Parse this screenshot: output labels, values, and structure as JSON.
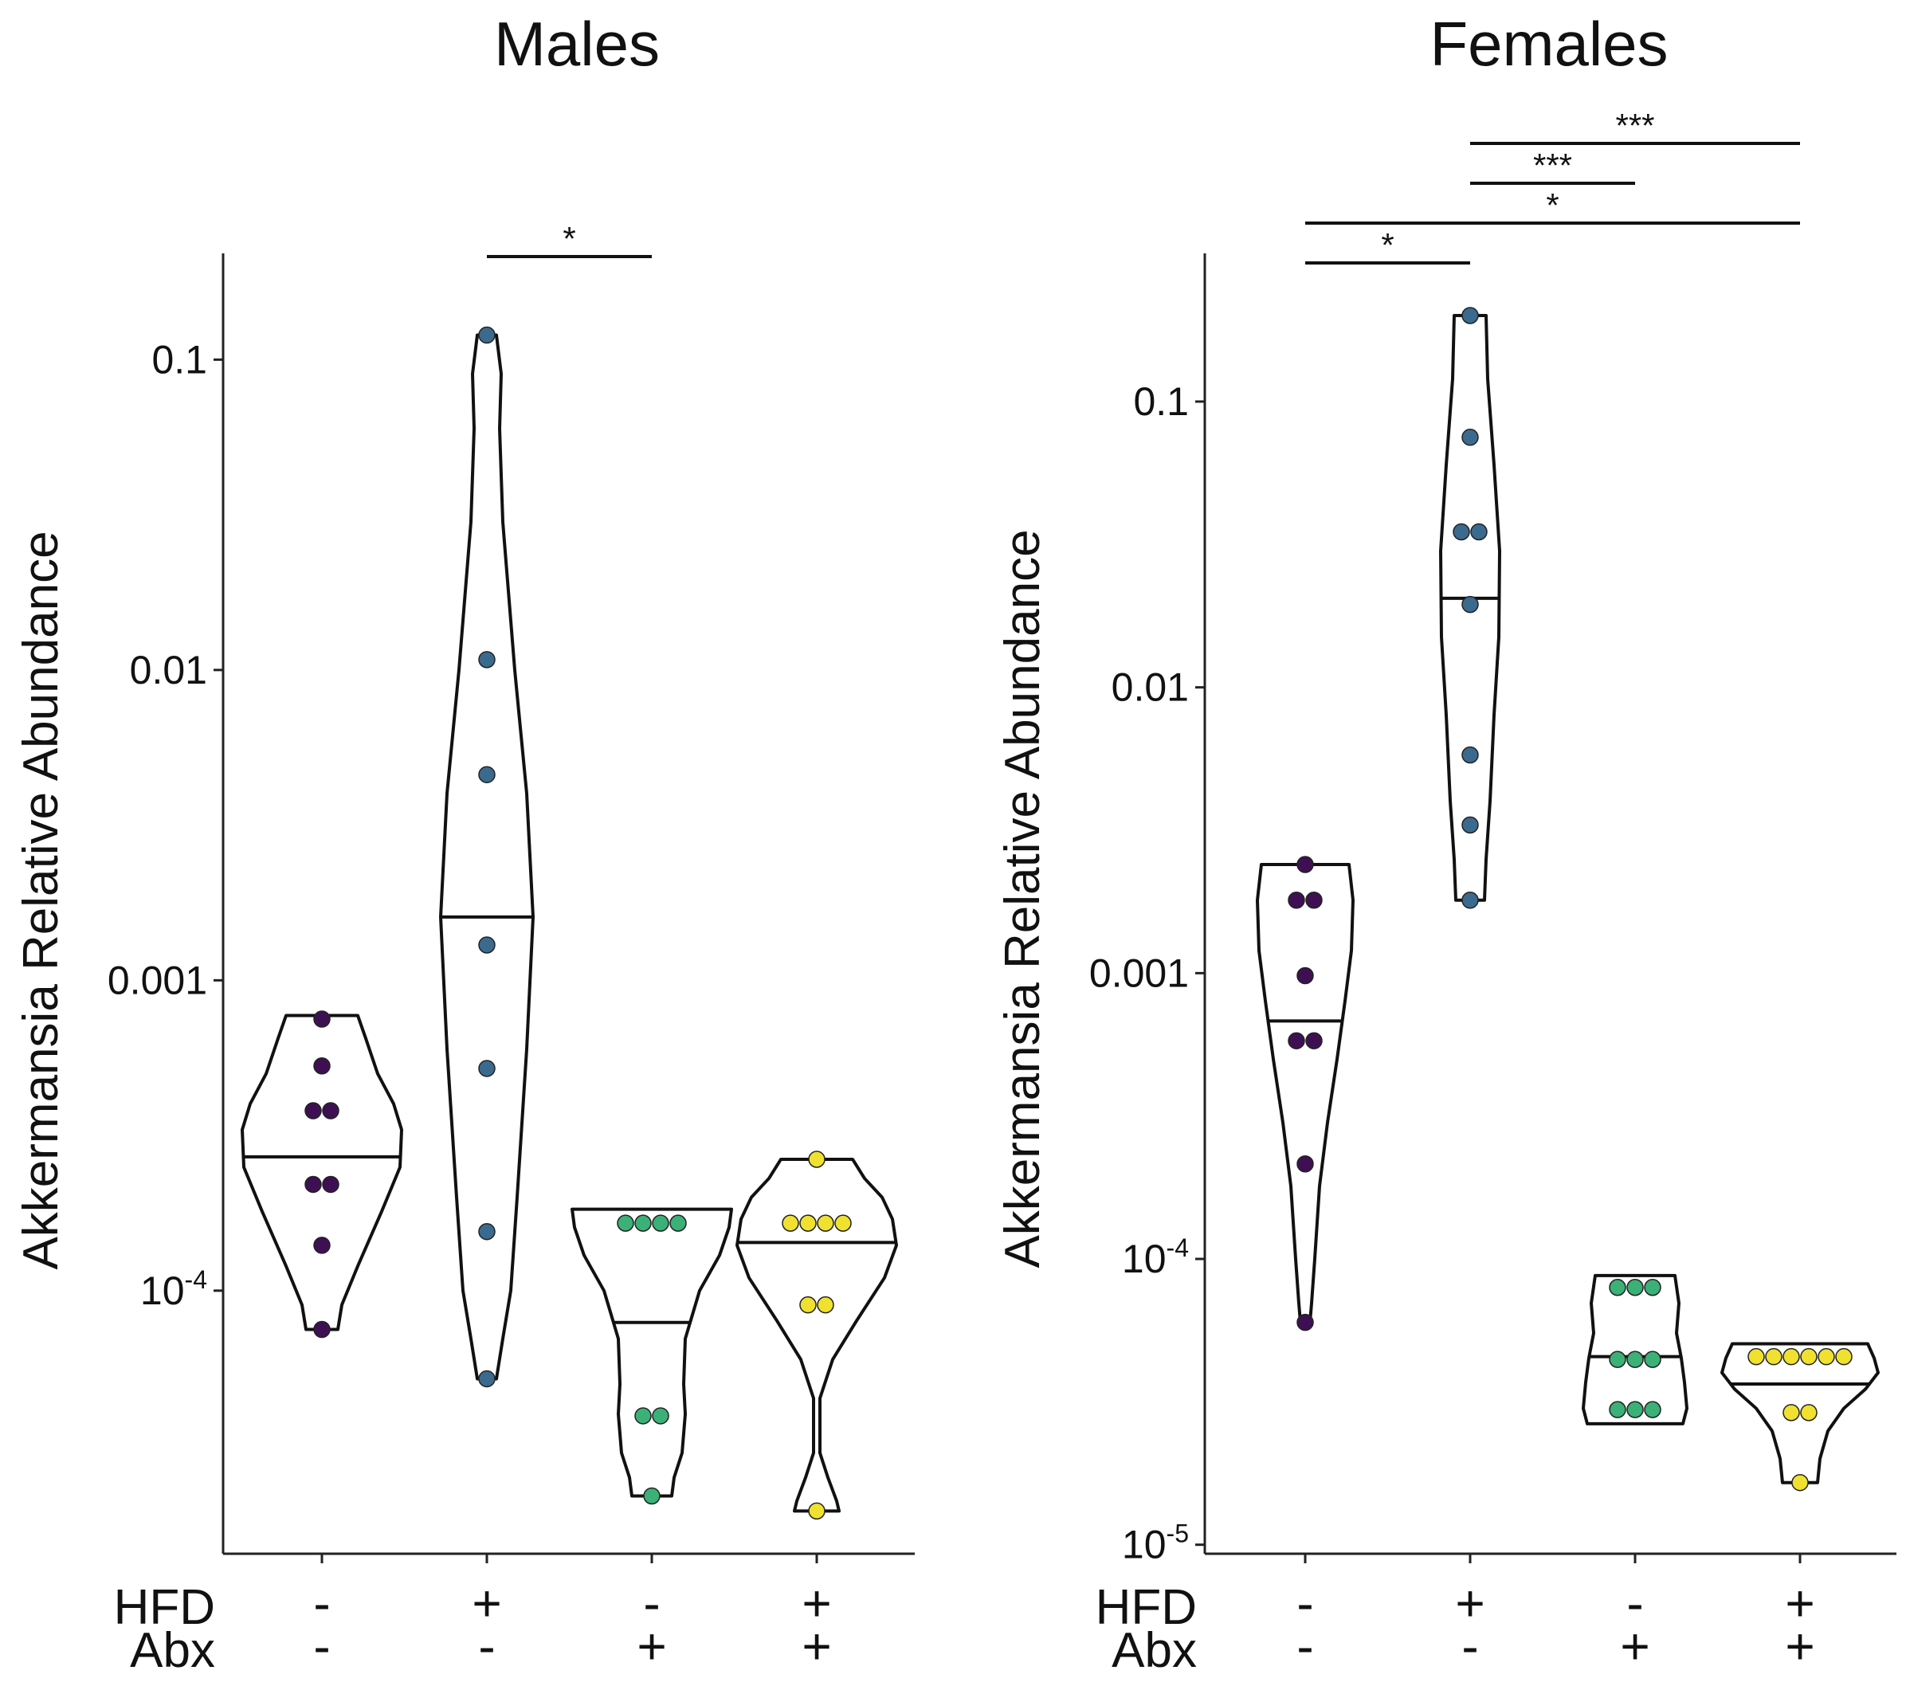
{
  "chart_data": [
    {
      "type": "violin",
      "panel": "left",
      "title": "Males",
      "ylabel": "Akkermansia Relative Abundance",
      "yscale": "log10",
      "ylim": [
        1.42e-05,
        0.22
      ],
      "yticks": [
        {
          "value": 0.1,
          "label": "0.1"
        },
        {
          "value": 0.01,
          "label": "0.01"
        },
        {
          "value": 0.001,
          "label": "0.001"
        },
        {
          "value": 0.0001,
          "base": "10",
          "exp": "-4"
        }
      ],
      "row_labels": [
        "HFD",
        "Abx"
      ],
      "categories": [
        {
          "hfd": "-",
          "abx": "-",
          "color": "#3e1053",
          "median": 0.00027,
          "violin_top": 0.00077,
          "violin_bottom": 7.5e-05,
          "points": [
            0.00075,
            0.00053,
            0.00038,
            0.00038,
            0.00022,
            0.00022,
            0.00014,
            7.5e-05
          ],
          "shape": [
            [
              0.00077,
              0.45
            ],
            [
              0.00065,
              0.55
            ],
            [
              0.0005,
              0.7
            ],
            [
              0.0004,
              0.9
            ],
            [
              0.00033,
              1.0
            ],
            [
              0.00025,
              0.98
            ],
            [
              0.00018,
              0.75
            ],
            [
              0.00012,
              0.45
            ],
            [
              9e-05,
              0.25
            ],
            [
              7.5e-05,
              0.2
            ]
          ]
        },
        {
          "hfd": "+",
          "abx": "-",
          "color": "#3b6a8f",
          "median": 0.0016,
          "violin_top": 0.12,
          "violin_bottom": 5.2e-05,
          "points": [
            0.12,
            0.0108,
            0.0046,
            0.0013,
            0.00052,
            0.000155,
            5.2e-05
          ],
          "shape": [
            [
              0.12,
              0.12
            ],
            [
              0.09,
              0.18
            ],
            [
              0.06,
              0.16
            ],
            [
              0.03,
              0.2
            ],
            [
              0.01,
              0.35
            ],
            [
              0.004,
              0.5
            ],
            [
              0.0016,
              0.58
            ],
            [
              0.0006,
              0.5
            ],
            [
              0.0002,
              0.38
            ],
            [
              0.0001,
              0.3
            ],
            [
              7e-05,
              0.2
            ],
            [
              5.2e-05,
              0.12
            ]
          ]
        },
        {
          "hfd": "-",
          "abx": "+",
          "color": "#3bb077",
          "median": 7.9e-05,
          "violin_top": 0.000183,
          "violin_bottom": 2.18e-05,
          "points": [
            0.000165,
            0.000165,
            0.000165,
            0.000165,
            3.95e-05,
            3.95e-05,
            2.18e-05
          ],
          "shape": [
            [
              0.000183,
              1.0
            ],
            [
              0.00016,
              0.97
            ],
            [
              0.00013,
              0.85
            ],
            [
              0.0001,
              0.6
            ],
            [
              7e-05,
              0.42
            ],
            [
              5e-05,
              0.4
            ],
            [
              4e-05,
              0.42
            ],
            [
              3e-05,
              0.38
            ],
            [
              2.5e-05,
              0.28
            ],
            [
              2.18e-05,
              0.25
            ]
          ]
        },
        {
          "hfd": "+",
          "abx": "+",
          "color": "#f0e130",
          "median": 0.000143,
          "violin_top": 0.000265,
          "violin_bottom": 1.95e-05,
          "points": [
            0.000265,
            0.000165,
            0.000165,
            0.000165,
            0.000165,
            9e-05,
            9e-05,
            1.95e-05
          ],
          "shape": [
            [
              0.000265,
              0.45
            ],
            [
              0.00023,
              0.6
            ],
            [
              0.0002,
              0.82
            ],
            [
              0.00017,
              0.95
            ],
            [
              0.00014,
              1.0
            ],
            [
              0.00011,
              0.85
            ],
            [
              8e-05,
              0.5
            ],
            [
              6e-05,
              0.2
            ],
            [
              4.5e-05,
              0.04
            ],
            [
              3e-05,
              0.04
            ],
            [
              2.5e-05,
              0.14
            ],
            [
              2.1e-05,
              0.25
            ],
            [
              1.95e-05,
              0.28
            ]
          ]
        }
      ],
      "significance": [
        {
          "from": 1,
          "to": 2,
          "label": "*"
        }
      ]
    },
    {
      "type": "violin",
      "panel": "right",
      "title": "Females",
      "ylabel": "Akkermansia Relative Abundance",
      "yscale": "log10",
      "ylim": [
        9.3e-06,
        0.33
      ],
      "yticks": [
        {
          "value": 0.1,
          "label": "0.1"
        },
        {
          "value": 0.01,
          "label": "0.01"
        },
        {
          "value": 0.001,
          "label": "0.001"
        },
        {
          "value": 0.0001,
          "base": "10",
          "exp": "-4"
        },
        {
          "value": 1e-05,
          "base": "10",
          "exp": "-5"
        }
      ],
      "row_labels": [
        "HFD",
        "Abx"
      ],
      "categories": [
        {
          "hfd": "-",
          "abx": "-",
          "color": "#3e1053",
          "median": 0.00068,
          "violin_top": 0.0024,
          "violin_bottom": 6e-05,
          "points": [
            0.0024,
            0.0018,
            0.0018,
            0.00098,
            0.00058,
            0.00058,
            0.000215,
            6e-05
          ],
          "shape": [
            [
              0.0024,
              0.55
            ],
            [
              0.0018,
              0.6
            ],
            [
              0.0012,
              0.58
            ],
            [
              0.0008,
              0.5
            ],
            [
              0.0005,
              0.4
            ],
            [
              0.0003,
              0.28
            ],
            [
              0.00018,
              0.18
            ],
            [
              0.0001,
              0.12
            ],
            [
              7e-05,
              0.08
            ],
            [
              6e-05,
              0.06
            ]
          ]
        },
        {
          "hfd": "+",
          "abx": "-",
          "color": "#3b6a8f",
          "median": 0.0205,
          "violin_top": 0.2,
          "violin_bottom": 0.0018,
          "points": [
            0.2,
            0.075,
            0.035,
            0.035,
            0.0195,
            0.0058,
            0.0033,
            0.0018
          ],
          "shape": [
            [
              0.2,
              0.2
            ],
            [
              0.12,
              0.22
            ],
            [
              0.06,
              0.3
            ],
            [
              0.03,
              0.37
            ],
            [
              0.015,
              0.36
            ],
            [
              0.008,
              0.3
            ],
            [
              0.004,
              0.25
            ],
            [
              0.0025,
              0.2
            ],
            [
              0.0018,
              0.18
            ]
          ]
        },
        {
          "hfd": "-",
          "abx": "+",
          "color": "#3bb077",
          "median": 4.55e-05,
          "violin_top": 8.75e-05,
          "violin_bottom": 2.65e-05,
          "points": [
            7.95e-05,
            7.95e-05,
            7.95e-05,
            4.45e-05,
            4.45e-05,
            4.45e-05,
            2.97e-05,
            2.97e-05,
            2.97e-05
          ],
          "shape": [
            [
              8.75e-05,
              0.5
            ],
            [
              7e-05,
              0.55
            ],
            [
              5.5e-05,
              0.52
            ],
            [
              4.5e-05,
              0.58
            ],
            [
              3.7e-05,
              0.62
            ],
            [
              3e-05,
              0.65
            ],
            [
              2.65e-05,
              0.6
            ]
          ]
        },
        {
          "hfd": "+",
          "abx": "+",
          "color": "#f0e130",
          "median": 3.65e-05,
          "violin_top": 5.05e-05,
          "violin_bottom": 1.65e-05,
          "points": [
            4.55e-05,
            4.55e-05,
            4.55e-05,
            4.55e-05,
            4.55e-05,
            4.55e-05,
            2.9e-05,
            2.9e-05,
            1.65e-05
          ],
          "shape": [
            [
              5.05e-05,
              0.85
            ],
            [
              4.5e-05,
              0.93
            ],
            [
              4e-05,
              0.98
            ],
            [
              3.5e-05,
              0.82
            ],
            [
              3e-05,
              0.55
            ],
            [
              2.5e-05,
              0.35
            ],
            [
              2e-05,
              0.25
            ],
            [
              1.65e-05,
              0.22
            ]
          ]
        }
      ],
      "significance": [
        {
          "from": 1,
          "to": 3,
          "label": "***"
        },
        {
          "from": 1,
          "to": 2,
          "label": "***"
        },
        {
          "from": 0,
          "to": 3,
          "label": "*"
        },
        {
          "from": 0,
          "to": 1,
          "label": "*"
        }
      ]
    }
  ]
}
